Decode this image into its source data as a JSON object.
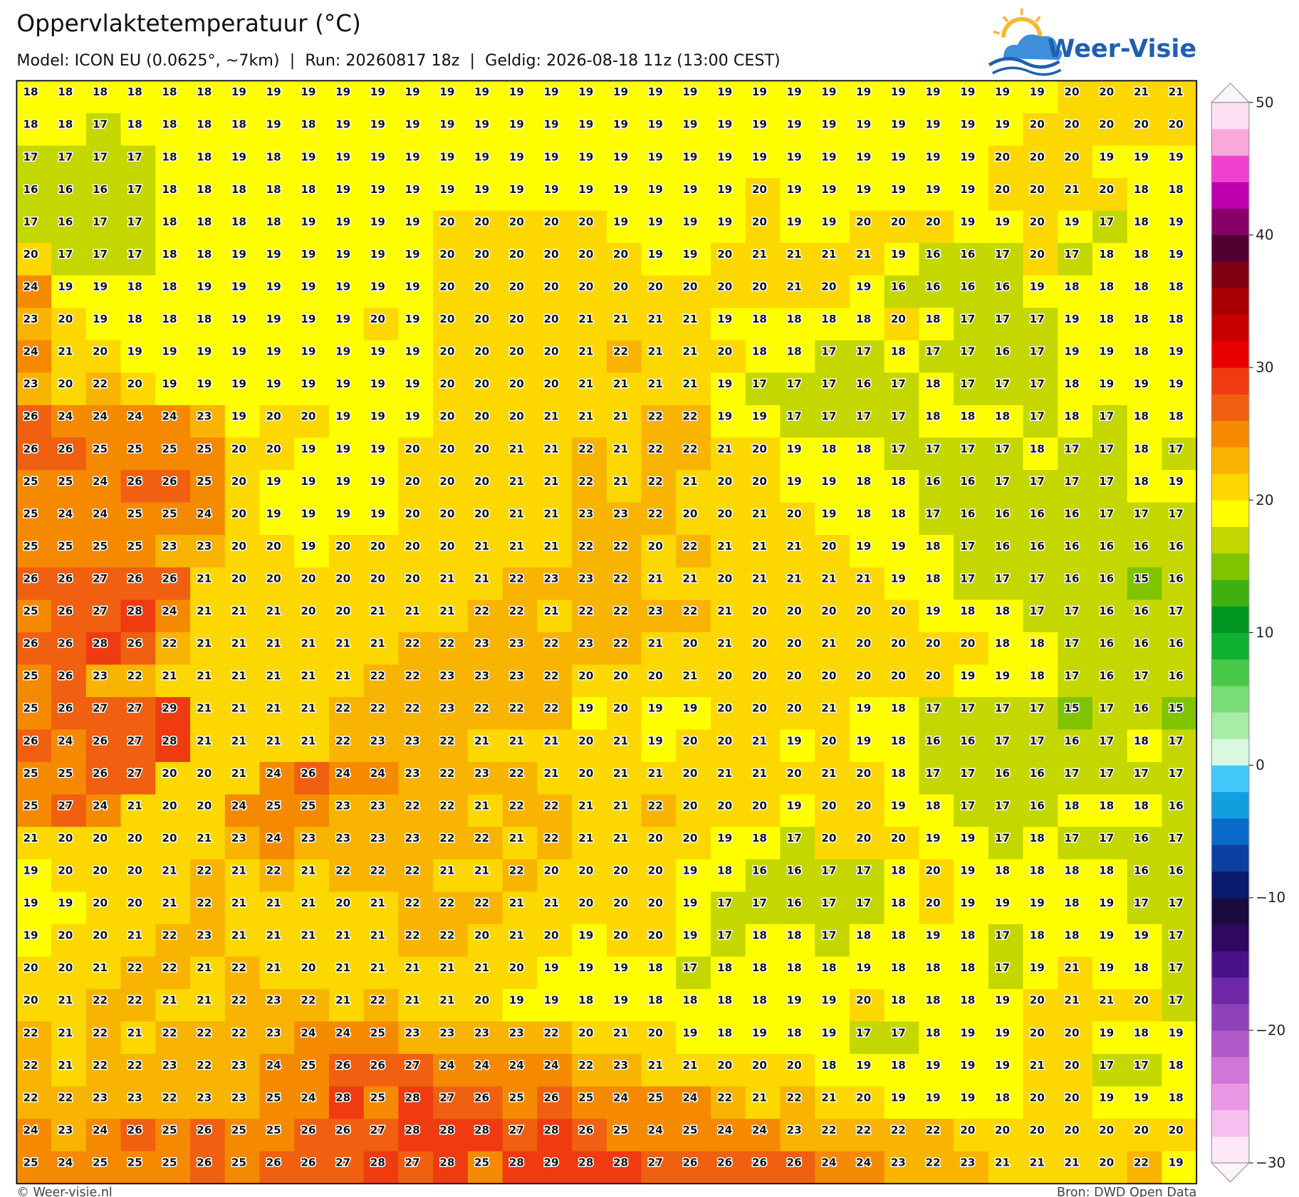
{
  "header": {
    "title": "Oppervlaktetemperatuur (°C)",
    "subtitle": "Model: ICON EU (0.0625°, ~7km)  |  Run: 20260817 18z  |  Geldig: 2026-08-18 11z (13:00 CEST)",
    "logo": "Weer-Visie"
  },
  "chart_data": {
    "type": "heatmap",
    "values": [
      [
        18,
        18,
        18,
        18,
        18,
        18,
        19,
        19,
        19,
        19,
        19,
        19,
        19,
        19,
        19,
        19,
        19,
        19,
        19,
        19,
        19,
        19,
        19,
        19,
        19,
        19,
        19,
        19,
        19,
        19,
        20,
        20,
        21,
        21
      ],
      [
        18,
        18,
        17,
        18,
        18,
        18,
        18,
        19,
        18,
        19,
        19,
        19,
        19,
        19,
        19,
        19,
        19,
        19,
        19,
        19,
        19,
        19,
        19,
        19,
        19,
        19,
        19,
        19,
        19,
        20,
        20,
        20,
        20,
        20
      ],
      [
        17,
        17,
        17,
        17,
        18,
        18,
        19,
        18,
        19,
        19,
        19,
        19,
        19,
        19,
        19,
        19,
        19,
        19,
        19,
        19,
        19,
        19,
        19,
        19,
        19,
        19,
        19,
        19,
        20,
        20,
        20,
        19,
        19,
        19
      ],
      [
        16,
        16,
        16,
        17,
        18,
        18,
        18,
        18,
        18,
        19,
        19,
        19,
        19,
        19,
        19,
        19,
        19,
        19,
        19,
        19,
        19,
        20,
        19,
        19,
        19,
        19,
        19,
        19,
        20,
        20,
        21,
        20,
        18,
        18
      ],
      [
        17,
        16,
        17,
        17,
        18,
        18,
        18,
        18,
        19,
        19,
        19,
        19,
        20,
        20,
        20,
        20,
        20,
        19,
        19,
        19,
        19,
        20,
        19,
        19,
        20,
        20,
        20,
        19,
        19,
        20,
        19,
        17,
        18,
        19
      ],
      [
        20,
        17,
        17,
        17,
        18,
        18,
        19,
        19,
        19,
        19,
        19,
        19,
        20,
        20,
        20,
        20,
        20,
        20,
        19,
        19,
        20,
        21,
        21,
        21,
        21,
        19,
        16,
        16,
        17,
        20,
        17,
        18,
        18,
        19
      ],
      [
        24,
        19,
        19,
        18,
        18,
        19,
        19,
        19,
        19,
        19,
        19,
        19,
        20,
        20,
        20,
        20,
        20,
        20,
        20,
        20,
        20,
        20,
        21,
        20,
        19,
        16,
        16,
        16,
        16,
        19,
        18,
        18,
        18,
        18
      ],
      [
        23,
        20,
        19,
        18,
        18,
        18,
        19,
        19,
        19,
        19,
        20,
        19,
        20,
        20,
        20,
        20,
        21,
        21,
        21,
        21,
        19,
        18,
        18,
        18,
        18,
        20,
        18,
        17,
        17,
        17,
        19,
        18,
        18,
        18
      ],
      [
        24,
        21,
        20,
        19,
        19,
        19,
        19,
        19,
        19,
        19,
        19,
        19,
        20,
        20,
        20,
        20,
        21,
        22,
        21,
        21,
        20,
        18,
        18,
        17,
        17,
        18,
        17,
        17,
        16,
        17,
        19,
        19,
        18,
        19
      ],
      [
        23,
        20,
        22,
        20,
        19,
        19,
        19,
        19,
        19,
        19,
        19,
        19,
        20,
        20,
        20,
        20,
        21,
        21,
        21,
        21,
        19,
        17,
        17,
        17,
        16,
        17,
        18,
        17,
        17,
        17,
        18,
        19,
        19,
        19
      ],
      [
        26,
        24,
        24,
        24,
        24,
        23,
        19,
        20,
        20,
        19,
        19,
        19,
        20,
        20,
        20,
        21,
        21,
        21,
        22,
        22,
        19,
        19,
        17,
        17,
        17,
        17,
        18,
        18,
        18,
        17,
        18,
        17,
        18,
        18
      ],
      [
        26,
        26,
        25,
        25,
        25,
        25,
        20,
        20,
        19,
        19,
        19,
        20,
        20,
        20,
        21,
        21,
        22,
        21,
        22,
        22,
        21,
        20,
        19,
        18,
        18,
        17,
        17,
        17,
        17,
        18,
        17,
        17,
        18,
        17
      ],
      [
        25,
        25,
        24,
        26,
        26,
        25,
        20,
        19,
        19,
        19,
        19,
        20,
        20,
        20,
        21,
        21,
        22,
        21,
        22,
        21,
        20,
        20,
        19,
        19,
        18,
        18,
        16,
        16,
        17,
        17,
        17,
        17,
        18,
        19
      ],
      [
        25,
        24,
        24,
        25,
        25,
        24,
        20,
        19,
        19,
        19,
        19,
        20,
        20,
        20,
        21,
        21,
        23,
        23,
        22,
        20,
        20,
        21,
        20,
        19,
        18,
        18,
        17,
        16,
        16,
        16,
        16,
        17,
        17,
        17
      ],
      [
        25,
        25,
        25,
        25,
        23,
        23,
        20,
        20,
        19,
        20,
        20,
        20,
        20,
        21,
        21,
        21,
        22,
        22,
        20,
        22,
        21,
        21,
        21,
        20,
        19,
        19,
        18,
        17,
        16,
        16,
        16,
        16,
        16,
        16
      ],
      [
        26,
        26,
        27,
        26,
        26,
        21,
        20,
        20,
        20,
        20,
        20,
        20,
        21,
        21,
        22,
        23,
        23,
        22,
        21,
        21,
        20,
        21,
        21,
        21,
        21,
        19,
        18,
        17,
        17,
        17,
        16,
        16,
        15,
        16
      ],
      [
        25,
        26,
        27,
        28,
        24,
        21,
        21,
        21,
        20,
        20,
        21,
        21,
        21,
        22,
        22,
        21,
        22,
        22,
        23,
        22,
        21,
        20,
        20,
        20,
        20,
        20,
        19,
        18,
        18,
        17,
        17,
        16,
        16,
        17
      ],
      [
        26,
        26,
        28,
        26,
        22,
        21,
        21,
        21,
        21,
        21,
        21,
        22,
        22,
        23,
        23,
        22,
        23,
        22,
        21,
        20,
        21,
        20,
        20,
        21,
        20,
        20,
        20,
        20,
        18,
        18,
        17,
        16,
        16,
        16
      ],
      [
        25,
        26,
        23,
        22,
        21,
        21,
        21,
        21,
        21,
        21,
        22,
        22,
        23,
        23,
        23,
        22,
        20,
        20,
        20,
        21,
        20,
        20,
        20,
        20,
        20,
        20,
        20,
        19,
        19,
        18,
        17,
        16,
        17,
        16
      ],
      [
        25,
        26,
        27,
        27,
        29,
        21,
        21,
        21,
        21,
        22,
        22,
        22,
        23,
        22,
        22,
        22,
        19,
        20,
        19,
        19,
        20,
        20,
        20,
        21,
        19,
        18,
        17,
        17,
        17,
        17,
        15,
        17,
        16,
        15
      ],
      [
        26,
        24,
        26,
        27,
        28,
        21,
        21,
        21,
        21,
        22,
        23,
        23,
        22,
        21,
        21,
        21,
        20,
        21,
        19,
        20,
        20,
        21,
        19,
        20,
        19,
        18,
        16,
        16,
        17,
        17,
        16,
        17,
        18,
        17
      ],
      [
        25,
        25,
        26,
        27,
        20,
        20,
        21,
        24,
        26,
        24,
        24,
        23,
        22,
        23,
        22,
        21,
        20,
        21,
        21,
        20,
        21,
        21,
        20,
        21,
        20,
        18,
        17,
        17,
        16,
        16,
        17,
        17,
        17,
        17
      ],
      [
        25,
        27,
        24,
        21,
        20,
        20,
        24,
        25,
        25,
        23,
        23,
        22,
        22,
        21,
        22,
        22,
        21,
        21,
        22,
        20,
        20,
        20,
        19,
        20,
        20,
        19,
        18,
        17,
        17,
        16,
        18,
        18,
        18,
        16
      ],
      [
        21,
        20,
        20,
        20,
        20,
        21,
        23,
        24,
        23,
        23,
        23,
        23,
        22,
        22,
        21,
        22,
        21,
        21,
        20,
        20,
        19,
        18,
        17,
        20,
        20,
        20,
        19,
        19,
        17,
        18,
        17,
        17,
        16,
        17
      ],
      [
        19,
        20,
        20,
        20,
        21,
        22,
        21,
        22,
        21,
        22,
        22,
        22,
        21,
        21,
        22,
        20,
        20,
        20,
        20,
        19,
        18,
        16,
        16,
        17,
        17,
        18,
        20,
        19,
        18,
        18,
        18,
        18,
        16,
        16
      ],
      [
        19,
        19,
        20,
        20,
        21,
        22,
        21,
        21,
        21,
        20,
        21,
        22,
        22,
        22,
        21,
        21,
        20,
        20,
        20,
        19,
        17,
        17,
        16,
        17,
        17,
        18,
        20,
        19,
        19,
        19,
        18,
        19,
        17,
        17
      ],
      [
        19,
        20,
        20,
        21,
        22,
        23,
        21,
        21,
        21,
        21,
        21,
        22,
        22,
        20,
        21,
        20,
        19,
        20,
        20,
        19,
        17,
        18,
        18,
        17,
        18,
        18,
        19,
        18,
        17,
        18,
        18,
        19,
        19,
        17
      ],
      [
        20,
        20,
        21,
        22,
        22,
        21,
        22,
        21,
        20,
        21,
        21,
        21,
        21,
        21,
        20,
        19,
        19,
        19,
        18,
        17,
        18,
        18,
        18,
        18,
        19,
        18,
        18,
        18,
        17,
        19,
        21,
        19,
        18,
        17
      ],
      [
        20,
        21,
        22,
        22,
        21,
        21,
        22,
        23,
        22,
        21,
        22,
        21,
        21,
        20,
        19,
        19,
        18,
        19,
        18,
        18,
        18,
        18,
        19,
        19,
        20,
        18,
        18,
        18,
        19,
        20,
        21,
        21,
        20,
        17
      ],
      [
        22,
        21,
        22,
        21,
        22,
        22,
        22,
        23,
        24,
        24,
        25,
        23,
        23,
        23,
        23,
        22,
        20,
        21,
        20,
        19,
        18,
        19,
        18,
        19,
        17,
        17,
        18,
        19,
        19,
        20,
        20,
        19,
        18,
        19
      ],
      [
        22,
        21,
        22,
        22,
        23,
        22,
        23,
        24,
        25,
        26,
        26,
        27,
        24,
        24,
        24,
        24,
        22,
        23,
        21,
        21,
        20,
        20,
        20,
        18,
        19,
        18,
        19,
        19,
        19,
        21,
        20,
        17,
        17,
        18
      ],
      [
        22,
        22,
        23,
        23,
        22,
        23,
        23,
        25,
        24,
        28,
        25,
        28,
        27,
        26,
        25,
        26,
        25,
        24,
        25,
        24,
        22,
        21,
        22,
        21,
        20,
        19,
        19,
        19,
        18,
        20,
        20,
        19,
        19,
        18
      ],
      [
        24,
        23,
        24,
        26,
        25,
        26,
        25,
        25,
        26,
        26,
        27,
        28,
        28,
        28,
        27,
        28,
        26,
        25,
        24,
        25,
        24,
        24,
        23,
        22,
        22,
        22,
        22,
        20,
        20,
        20,
        20,
        20,
        20,
        20
      ],
      [
        25,
        24,
        25,
        25,
        25,
        26,
        25,
        26,
        26,
        27,
        28,
        27,
        28,
        25,
        28,
        29,
        28,
        28,
        27,
        26,
        26,
        26,
        26,
        24,
        24,
        23,
        22,
        23,
        21,
        21,
        21,
        20,
        22,
        19
      ]
    ],
    "zlim": [
      -30,
      50
    ],
    "zticks": [
      {
        "value": -30,
        "label": "−30"
      },
      {
        "value": -20,
        "label": "−20"
      },
      {
        "value": -10,
        "label": "−10"
      },
      0,
      10,
      20,
      30,
      40,
      50
    ],
    "colors": [
      "#fde8f8",
      "#f8c0f0",
      "#e898e4",
      "#d078d8",
      "#b058c8",
      "#9040b8",
      "#7028a8",
      "#4a108a",
      "#300860",
      "#1a0a40",
      "#0a1a6e",
      "#0a40a0",
      "#0a6ac8",
      "#10a0e0",
      "#40c8f8",
      "#d8f8e0",
      "#a8eca8",
      "#78dc78",
      "#48c848",
      "#10b030",
      "#009620",
      "#40b010",
      "#80c400",
      "#c4d800",
      "#ffff00",
      "#fcd800",
      "#f8b400",
      "#f58a00",
      "#f06010",
      "#f03a10",
      "#e80000",
      "#c80000",
      "#a80000",
      "#800010",
      "#500030",
      "#880068",
      "#c000b0",
      "#f040d0",
      "#f8a8da",
      "#fde0f2"
    ]
  },
  "footer": {
    "left": "© Weer-visie.nl",
    "right": "Bron: DWD Open Data"
  }
}
